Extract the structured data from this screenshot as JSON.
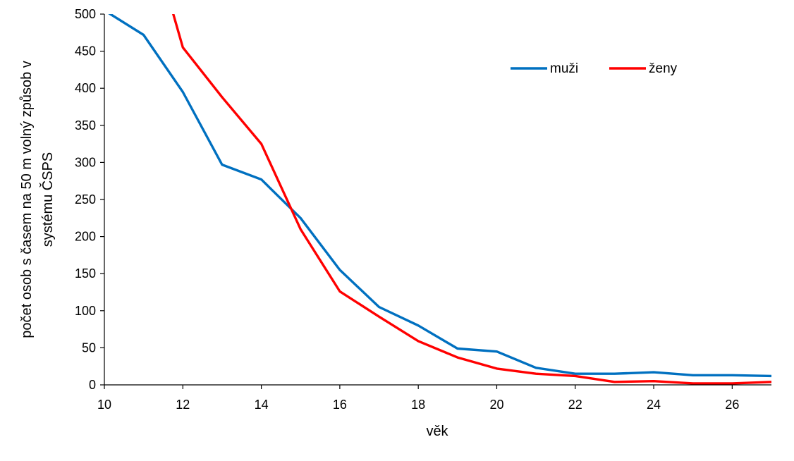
{
  "chart_data": {
    "type": "line",
    "xlabel": "věk",
    "ylabel_lines": [
      "počet osob s časem na 50 m volný způsob v",
      "systému ČSPS"
    ],
    "xlim": [
      10,
      27
    ],
    "ylim": [
      0,
      500
    ],
    "xticks": [
      10,
      12,
      14,
      16,
      18,
      20,
      22,
      24,
      26
    ],
    "yticks": [
      0,
      50,
      100,
      150,
      200,
      250,
      300,
      350,
      400,
      450,
      500
    ],
    "grid": false,
    "legend_position": "top-right",
    "series": [
      {
        "name": "muži",
        "color": "#0070C0",
        "points": [
          [
            10,
            505
          ],
          [
            11,
            472
          ],
          [
            12,
            395
          ],
          [
            13,
            297
          ],
          [
            14,
            277
          ],
          [
            15,
            225
          ],
          [
            16,
            155
          ],
          [
            17,
            105
          ],
          [
            18,
            80
          ],
          [
            19,
            49
          ],
          [
            20,
            45
          ],
          [
            21,
            23
          ],
          [
            22,
            15
          ],
          [
            23,
            15
          ],
          [
            24,
            17
          ],
          [
            25,
            13
          ],
          [
            26,
            13
          ],
          [
            27,
            12
          ]
        ]
      },
      {
        "name": "ženy",
        "color": "#FF0000",
        "points": [
          [
            11,
            640
          ],
          [
            12,
            455
          ],
          [
            13,
            388
          ],
          [
            14,
            325
          ],
          [
            15,
            210
          ],
          [
            16,
            126
          ],
          [
            17,
            92
          ],
          [
            18,
            59
          ],
          [
            19,
            37
          ],
          [
            20,
            22
          ],
          [
            21,
            15
          ],
          [
            22,
            12
          ],
          [
            23,
            4
          ],
          [
            24,
            5
          ],
          [
            25,
            2
          ],
          [
            26,
            2
          ],
          [
            27,
            4
          ]
        ]
      }
    ]
  }
}
